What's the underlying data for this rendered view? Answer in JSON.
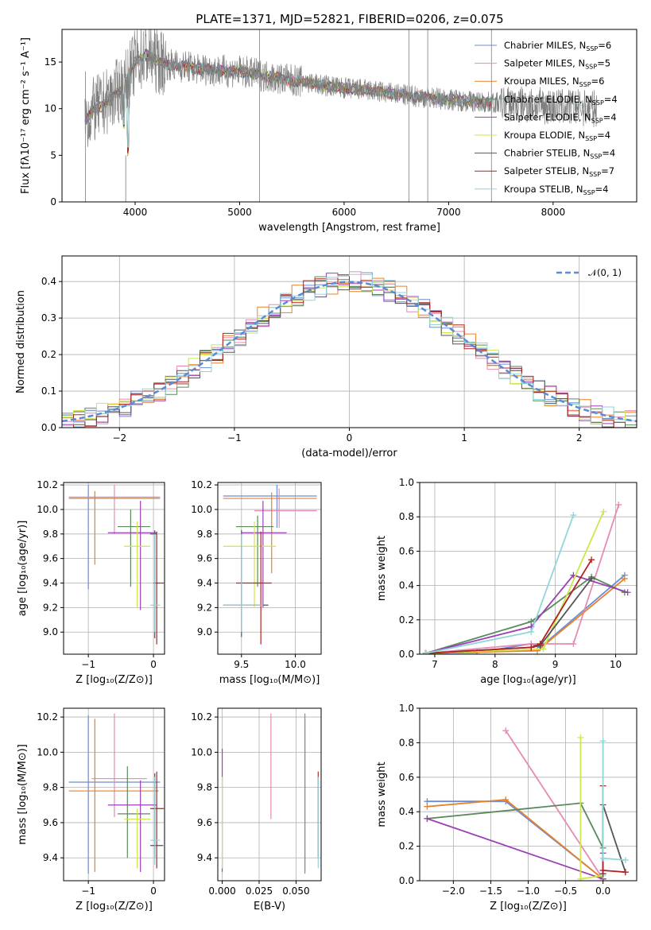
{
  "figure": {
    "title": "PLATE=1371, MJD=52821, FIBERID=0206, z=0.075"
  },
  "series_colors": {
    "Chabrier MILES": "#6b8cd6",
    "Salpeter MILES": "#e58bb5",
    "Kroupa MILES": "#e8822a",
    "Chabrier ELODIE": "#5a8a5a",
    "Salpeter ELODIE": "#9b3fb5",
    "Kroupa ELODIE": "#cde64a",
    "Chabrier STELIB": "#555555",
    "Salpeter STELIB": "#b22222",
    "Kroupa STELIB": "#8fd6db"
  },
  "chart_data": [
    {
      "id": "spectrum",
      "type": "line",
      "title": "PLATE=1371, MJD=52821, FIBERID=0206, z=0.075",
      "xlabel": "wavelength [Angstrom, rest frame]",
      "ylabel": "Flux [fλ10⁻¹⁷ erg cm⁻² s⁻¹ A⁻¹]",
      "xlim": [
        3300,
        8800
      ],
      "ylim": [
        0,
        18.5
      ],
      "xticks": [
        4000,
        5000,
        6000,
        7000,
        8000
      ],
      "yticks": [
        0,
        5,
        10,
        15
      ],
      "grid": false,
      "legend_position": "top-right",
      "data_color": "#808080",
      "legend": [
        {
          "name": "Chabrier MILES",
          "label": "Chabrier MILES, N",
          "sub": "SSP",
          "eq": "=6"
        },
        {
          "name": "Salpeter MILES",
          "label": "Salpeter MILES, N",
          "sub": "SSP",
          "eq": "=5"
        },
        {
          "name": "Kroupa MILES",
          "label": "Kroupa MILES, N",
          "sub": "SSP",
          "eq": "=6"
        },
        {
          "name": "Chabrier ELODIE",
          "label": "Chabrier ELODIE, N",
          "sub": "SSP",
          "eq": "=4"
        },
        {
          "name": "Salpeter ELODIE",
          "label": "Salpeter ELODIE, N",
          "sub": "SSP",
          "eq": "=4"
        },
        {
          "name": "Kroupa ELODIE",
          "label": "Kroupa ELODIE, N",
          "sub": "SSP",
          "eq": "=4"
        },
        {
          "name": "Chabrier STELIB",
          "label": "Chabrier STELIB, N",
          "sub": "SSP",
          "eq": "=4"
        },
        {
          "name": "Salpeter STELIB",
          "label": "Salpeter STELIB, N",
          "sub": "SSP",
          "eq": "=7"
        },
        {
          "name": "Kroupa STELIB",
          "label": "Kroupa STELIB, N",
          "sub": "SSP",
          "eq": "=4"
        }
      ],
      "continuum_x": [
        3520,
        3600,
        3700,
        3800,
        3900,
        4000,
        4100,
        4200,
        4300,
        4400,
        4500,
        4600,
        4700,
        4800,
        4900,
        5000,
        5200,
        5400,
        5600,
        5800,
        6000,
        6200,
        6400,
        6600,
        6800,
        7000,
        7200,
        7420
      ],
      "continuum_y": [
        8.8,
        9.8,
        10.5,
        11.5,
        12.5,
        15.0,
        15.8,
        15.2,
        14.8,
        14.6,
        14.5,
        14.3,
        14.2,
        14.1,
        14.0,
        14.0,
        13.6,
        13.2,
        12.9,
        12.5,
        12.2,
        12.0,
        11.7,
        11.4,
        11.2,
        11.0,
        10.8,
        10.6
      ],
      "stelib_tail_x": [
        7420,
        7600,
        7800,
        8000,
        8200,
        8350
      ],
      "stelib_tail_y": [
        10.9,
        11.2,
        11.3,
        11.0,
        10.5,
        10.2
      ]
    },
    {
      "id": "residuals",
      "type": "line",
      "xlabel": "(data-model)/error",
      "ylabel": "Normed distribution",
      "xlim": [
        -2.5,
        2.5
      ],
      "ylim": [
        0,
        0.47
      ],
      "xticks": [
        -2,
        -1,
        0,
        1,
        2
      ],
      "yticks": [
        0.0,
        0.1,
        0.2,
        0.3,
        0.4
      ],
      "grid": true,
      "legend_position": "top-right",
      "gaussian": {
        "label": "𝒩(0, 1)",
        "mean": 0,
        "sigma": 1
      }
    },
    {
      "id": "age-vs-Z",
      "type": "scatter",
      "xlabel": "Z [log₁₀(Z/Z⊙)]",
      "ylabel": "age  [log₁₀(age/yr)]",
      "xlim": [
        -1.38,
        0.17
      ],
      "ylim": [
        8.82,
        10.22
      ],
      "xticks": [
        -1,
        0
      ],
      "yticks": [
        9.0,
        9.2,
        9.4,
        9.6,
        9.8,
        10.0,
        10.2
      ],
      "grid": true,
      "points": [
        {
          "s": "Chabrier MILES",
          "x": -1.0,
          "y": 10.1,
          "xe": [
            -1.3,
            0.1
          ],
          "ye": [
            9.35,
            10.2
          ]
        },
        {
          "s": "Salpeter MILES",
          "x": -0.6,
          "y": 10.1,
          "xe": [
            -1.3,
            0.1
          ],
          "ye": [
            9.8,
            10.2
          ]
        },
        {
          "s": "Kroupa MILES",
          "x": -0.9,
          "y": 10.09,
          "xe": [
            -1.3,
            0.1
          ],
          "ye": [
            9.55,
            10.15
          ]
        },
        {
          "s": "Chabrier ELODIE",
          "x": -0.35,
          "y": 9.86,
          "xe": [
            -0.55,
            -0.05
          ],
          "ye": [
            9.37,
            10.0
          ]
        },
        {
          "s": "Salpeter ELODIE",
          "x": -0.2,
          "y": 9.81,
          "xe": [
            -0.7,
            0.05
          ],
          "ye": [
            9.18,
            10.07
          ]
        },
        {
          "s": "Kroupa ELODIE",
          "x": -0.25,
          "y": 9.7,
          "xe": [
            -0.45,
            -0.05
          ],
          "ye": [
            9.2,
            9.9
          ]
        },
        {
          "s": "Chabrier STELIB",
          "x": 0.02,
          "y": 9.8,
          "xe": [
            -0.05,
            0.05
          ],
          "ye": [
            8.95,
            9.83
          ]
        },
        {
          "s": "Salpeter STELIB",
          "x": 0.05,
          "y": 9.4,
          "xe": [
            0.0,
            0.16
          ],
          "ye": [
            8.9,
            9.82
          ]
        },
        {
          "s": "Kroupa STELIB",
          "x": 0.02,
          "y": 9.22,
          "xe": [
            -0.05,
            0.1
          ],
          "ye": [
            9.0,
            9.8
          ]
        }
      ]
    },
    {
      "id": "age-vs-mass",
      "type": "scatter",
      "xlabel": "mass [log₁₀(M/M⊙)]",
      "ylabel": "",
      "xlim": [
        9.28,
        10.24
      ],
      "ylim": [
        8.82,
        10.22
      ],
      "xticks": [
        9.5,
        10.0
      ],
      "yticks": [
        9.0,
        9.2,
        9.4,
        9.6,
        9.8,
        10.0,
        10.2
      ],
      "grid": true,
      "points": [
        {
          "s": "Chabrier MILES",
          "x": 9.83,
          "y": 10.11,
          "xe": [
            9.33,
            10.2
          ],
          "ye": [
            9.85,
            10.2
          ]
        },
        {
          "s": "Salpeter MILES",
          "x": 9.85,
          "y": 9.99,
          "xe": [
            9.62,
            10.2
          ],
          "ye": [
            9.85,
            10.17
          ]
        },
        {
          "s": "Kroupa MILES",
          "x": 9.78,
          "y": 10.09,
          "xe": [
            9.33,
            10.2
          ],
          "ye": [
            9.48,
            10.14
          ]
        },
        {
          "s": "Chabrier ELODIE",
          "x": 9.65,
          "y": 9.86,
          "xe": [
            9.45,
            9.8
          ],
          "ye": [
            9.37,
            9.95
          ]
        },
        {
          "s": "Salpeter ELODIE",
          "x": 9.7,
          "y": 9.81,
          "xe": [
            9.5,
            9.92
          ],
          "ye": [
            9.2,
            10.07
          ]
        },
        {
          "s": "Kroupa ELODIE",
          "x": 9.62,
          "y": 9.7,
          "xe": [
            9.33,
            9.82
          ],
          "ye": [
            9.2,
            9.9
          ]
        },
        {
          "s": "Chabrier STELIB",
          "x": 9.5,
          "y": 9.22,
          "xe": [
            9.33,
            9.75
          ],
          "ye": [
            8.96,
            9.83
          ]
        },
        {
          "s": "Salpeter STELIB",
          "x": 9.68,
          "y": 9.4,
          "xe": [
            9.45,
            9.78
          ],
          "ye": [
            8.9,
            9.82
          ]
        },
        {
          "s": "Kroupa STELIB",
          "x": 9.5,
          "y": 9.22,
          "xe": [
            9.33,
            9.7
          ],
          "ye": [
            9.0,
            9.8
          ]
        }
      ]
    },
    {
      "id": "weight-vs-age",
      "type": "line",
      "xlabel": "age  [log₁₀(age/yr)]",
      "ylabel": "mass weight",
      "xlim": [
        6.75,
        10.35
      ],
      "ylim": [
        0,
        1.0
      ],
      "xticks": [
        7,
        8,
        9,
        10
      ],
      "yticks": [
        0.0,
        0.2,
        0.4,
        0.6,
        0.8,
        1.0
      ],
      "grid": true,
      "series": [
        {
          "name": "Chabrier MILES",
          "x": [
            6.85,
            7.7,
            8.6,
            8.75,
            10.15
          ],
          "y": [
            0.005,
            0.01,
            0.06,
            0.04,
            0.46
          ]
        },
        {
          "name": "Salpeter MILES",
          "x": [
            6.85,
            8.6,
            9.3,
            10.05
          ],
          "y": [
            0.005,
            0.06,
            0.06,
            0.87
          ]
        },
        {
          "name": "Kroupa MILES",
          "x": [
            6.85,
            8.7,
            10.15
          ],
          "y": [
            0.005,
            0.02,
            0.44
          ]
        },
        {
          "name": "Chabrier ELODIE",
          "x": [
            6.85,
            8.6,
            9.6,
            10.15
          ],
          "y": [
            0.005,
            0.19,
            0.45,
            0.36
          ]
        },
        {
          "name": "Salpeter ELODIE",
          "x": [
            6.85,
            8.6,
            9.3,
            10.2
          ],
          "y": [
            0.005,
            0.16,
            0.46,
            0.36
          ]
        },
        {
          "name": "Kroupa ELODIE",
          "x": [
            6.85,
            8.8,
            9.8
          ],
          "y": [
            0.005,
            0.03,
            0.83
          ]
        },
        {
          "name": "Chabrier STELIB",
          "x": [
            6.85,
            8.6,
            8.75,
            9.6
          ],
          "y": [
            0.005,
            0.04,
            0.05,
            0.44
          ]
        },
        {
          "name": "Salpeter STELIB",
          "x": [
            6.85,
            8.6,
            8.75,
            9.6
          ],
          "y": [
            0.005,
            0.04,
            0.06,
            0.55
          ]
        },
        {
          "name": "Kroupa STELIB",
          "x": [
            6.85,
            8.6,
            9.3
          ],
          "y": [
            0.005,
            0.13,
            0.81
          ]
        }
      ]
    },
    {
      "id": "mass-vs-Z",
      "type": "scatter",
      "xlabel": "Z [log₁₀(Z/Z⊙)]",
      "ylabel": "mass [log₁₀(M/M⊙)]",
      "xlim": [
        -1.38,
        0.17
      ],
      "ylim": [
        9.27,
        10.25
      ],
      "xticks": [
        -1,
        0
      ],
      "yticks": [
        9.4,
        9.6,
        9.8,
        10.0,
        10.2
      ],
      "grid": true,
      "points": [
        {
          "s": "Chabrier MILES",
          "x": -1.0,
          "y": 9.83,
          "xe": [
            -1.3,
            0.1
          ],
          "ye": [
            9.31,
            10.21
          ]
        },
        {
          "s": "Salpeter MILES",
          "x": -0.6,
          "y": 9.85,
          "xe": [
            -0.95,
            -0.1
          ],
          "ye": [
            9.63,
            10.22
          ]
        },
        {
          "s": "Kroupa MILES",
          "x": -0.9,
          "y": 9.78,
          "xe": [
            -1.3,
            0.08
          ],
          "ye": [
            9.32,
            10.19
          ]
        },
        {
          "s": "Chabrier ELODIE",
          "x": -0.4,
          "y": 9.65,
          "xe": [
            -0.55,
            -0.05
          ],
          "ye": [
            9.4,
            9.92
          ]
        },
        {
          "s": "Salpeter ELODIE",
          "x": -0.2,
          "y": 9.7,
          "xe": [
            -0.7,
            0.05
          ],
          "ye": [
            9.32,
            9.84
          ]
        },
        {
          "s": "Kroupa ELODIE",
          "x": -0.25,
          "y": 9.62,
          "xe": [
            -0.45,
            -0.05
          ],
          "ye": [
            9.34,
            9.68
          ]
        },
        {
          "s": "Chabrier STELIB",
          "x": 0.02,
          "y": 9.47,
          "xe": [
            -0.05,
            0.15
          ],
          "ye": [
            9.4,
            9.88
          ]
        },
        {
          "s": "Salpeter STELIB",
          "x": 0.05,
          "y": 9.68,
          "xe": [
            -0.05,
            0.16
          ],
          "ye": [
            9.34,
            9.89
          ]
        },
        {
          "s": "Kroupa STELIB",
          "x": 0.02,
          "y": 9.5,
          "xe": [
            -0.05,
            0.1
          ],
          "ye": [
            9.36,
            9.86
          ]
        }
      ]
    },
    {
      "id": "mass-vs-ebv",
      "type": "scatter",
      "xlabel": "E(B-V)",
      "ylabel": "",
      "xlim": [
        -0.003,
        0.067
      ],
      "ylim": [
        9.27,
        10.25
      ],
      "xticks": [
        0.0,
        0.025,
        0.05
      ],
      "xtick_labels": [
        "0.000",
        "0.025",
        "0.050"
      ],
      "yticks": [
        9.4,
        9.6,
        9.8,
        10.0,
        10.2
      ],
      "grid": true,
      "points": [
        {
          "s": "Salpeter ELODIE",
          "x": 0.0,
          "y": 9.65,
          "ye": [
            9.32,
            10.02
          ]
        },
        {
          "s": "Kroupa ELODIE",
          "x": 0.0,
          "y": 9.62,
          "ye": [
            9.34,
            9.86
          ]
        },
        {
          "s": "Salpeter MILES",
          "x": 0.033,
          "y": 9.85,
          "ye": [
            9.62,
            10.22
          ]
        },
        {
          "s": "Kroupa MILES",
          "x": 0.056,
          "y": 9.78,
          "ye": [
            9.32,
            10.19
          ]
        },
        {
          "s": "Chabrier MILES",
          "x": 0.056,
          "y": 9.83,
          "ye": [
            9.31,
            10.22
          ]
        },
        {
          "s": "Salpeter STELIB",
          "x": 0.065,
          "y": 9.68,
          "ye": [
            9.4,
            9.89
          ]
        },
        {
          "s": "Kroupa STELIB",
          "x": 0.065,
          "y": 9.5,
          "ye": [
            9.34,
            9.86
          ]
        }
      ]
    },
    {
      "id": "weight-vs-Z",
      "type": "line",
      "xlabel": "Z [log₁₀(Z/Z⊙)]",
      "ylabel": "mass weight",
      "xlim": [
        -2.45,
        0.45
      ],
      "ylim": [
        0,
        1.0
      ],
      "xticks": [
        -2.0,
        -1.5,
        -1.0,
        -0.5,
        0.0
      ],
      "yticks": [
        0.0,
        0.2,
        0.4,
        0.6,
        0.8,
        1.0
      ],
      "grid": true,
      "series": [
        {
          "name": "Chabrier MILES",
          "x": [
            -2.35,
            -1.3,
            0.0,
            0.0
          ],
          "y": [
            0.46,
            0.46,
            0.01,
            0.04
          ]
        },
        {
          "name": "Salpeter MILES",
          "x": [
            -1.3,
            0.0,
            0.0
          ],
          "y": [
            0.87,
            0.01,
            0.06
          ]
        },
        {
          "name": "Kroupa MILES",
          "x": [
            -2.35,
            -1.3,
            0.0
          ],
          "y": [
            0.43,
            0.47,
            0.01
          ]
        },
        {
          "name": "Chabrier ELODIE",
          "x": [
            -2.35,
            -0.3,
            0.0,
            0.0
          ],
          "y": [
            0.36,
            0.45,
            0.19,
            0.01
          ]
        },
        {
          "name": "Salpeter ELODIE",
          "x": [
            -2.35,
            0.0,
            0.0
          ],
          "y": [
            0.36,
            0.01,
            0.16
          ]
        },
        {
          "name": "Kroupa ELODIE",
          "x": [
            -0.3,
            -0.3,
            0.0
          ],
          "y": [
            0.83,
            0.01,
            0.03
          ]
        },
        {
          "name": "Chabrier STELIB",
          "x": [
            0.0,
            0.0,
            0.3
          ],
          "y": [
            0.04,
            0.44,
            0.05
          ]
        },
        {
          "name": "Salpeter STELIB",
          "x": [
            0.0,
            0.0,
            0.3
          ],
          "y": [
            0.55,
            0.06,
            0.05
          ]
        },
        {
          "name": "Kroupa STELIB",
          "x": [
            0.0,
            0.0,
            0.3
          ],
          "y": [
            0.81,
            0.13,
            0.12
          ]
        }
      ]
    }
  ]
}
